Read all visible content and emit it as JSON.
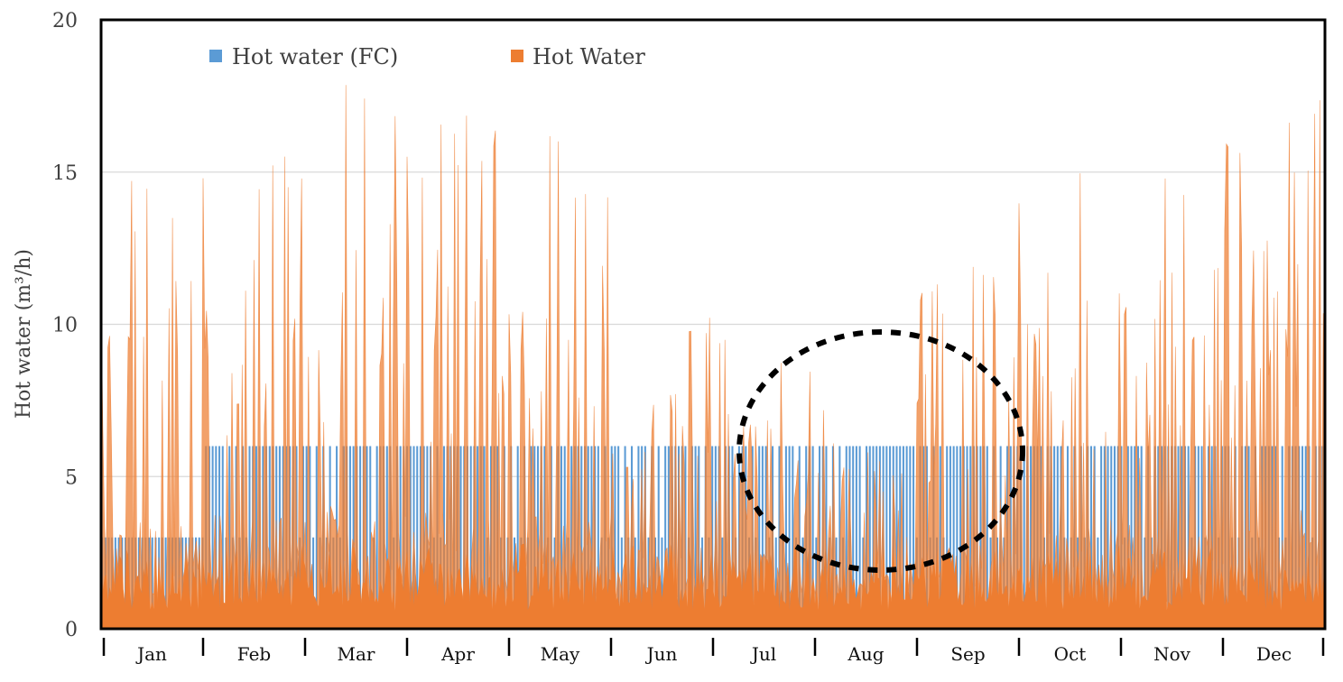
{
  "chart_data": {
    "type": "area",
    "title": "",
    "xlabel": "",
    "ylabel": "Hot water (m³/h)",
    "ylim": [
      0,
      20
    ],
    "yticks": [
      0,
      5,
      10,
      15,
      20
    ],
    "grid": "horizontal",
    "legend_position": "top-left",
    "categories": [
      "Jan",
      "Feb",
      "Mar",
      "Apr",
      "May",
      "Jun",
      "Jul",
      "Aug",
      "Sep",
      "Oct",
      "Nov",
      "Dec"
    ],
    "series": [
      {
        "name": "Hot water (FC)",
        "color": "#5b9bd5",
        "levels": [
          0,
          3,
          6
        ],
        "values": [
          3,
          6,
          6,
          6,
          6,
          6,
          6,
          6,
          6,
          6,
          6,
          6
        ]
      },
      {
        "name": "Hot Water",
        "color": "#ed7d31",
        "values": [
          15.3,
          16.3,
          18.0,
          16.9,
          16.2,
          10.4,
          9.7,
          8.3,
          11.9,
          15.6,
          15.8,
          17.5
        ]
      }
    ],
    "annotation": "dashed circle highlighting Jul–Sep period"
  }
}
